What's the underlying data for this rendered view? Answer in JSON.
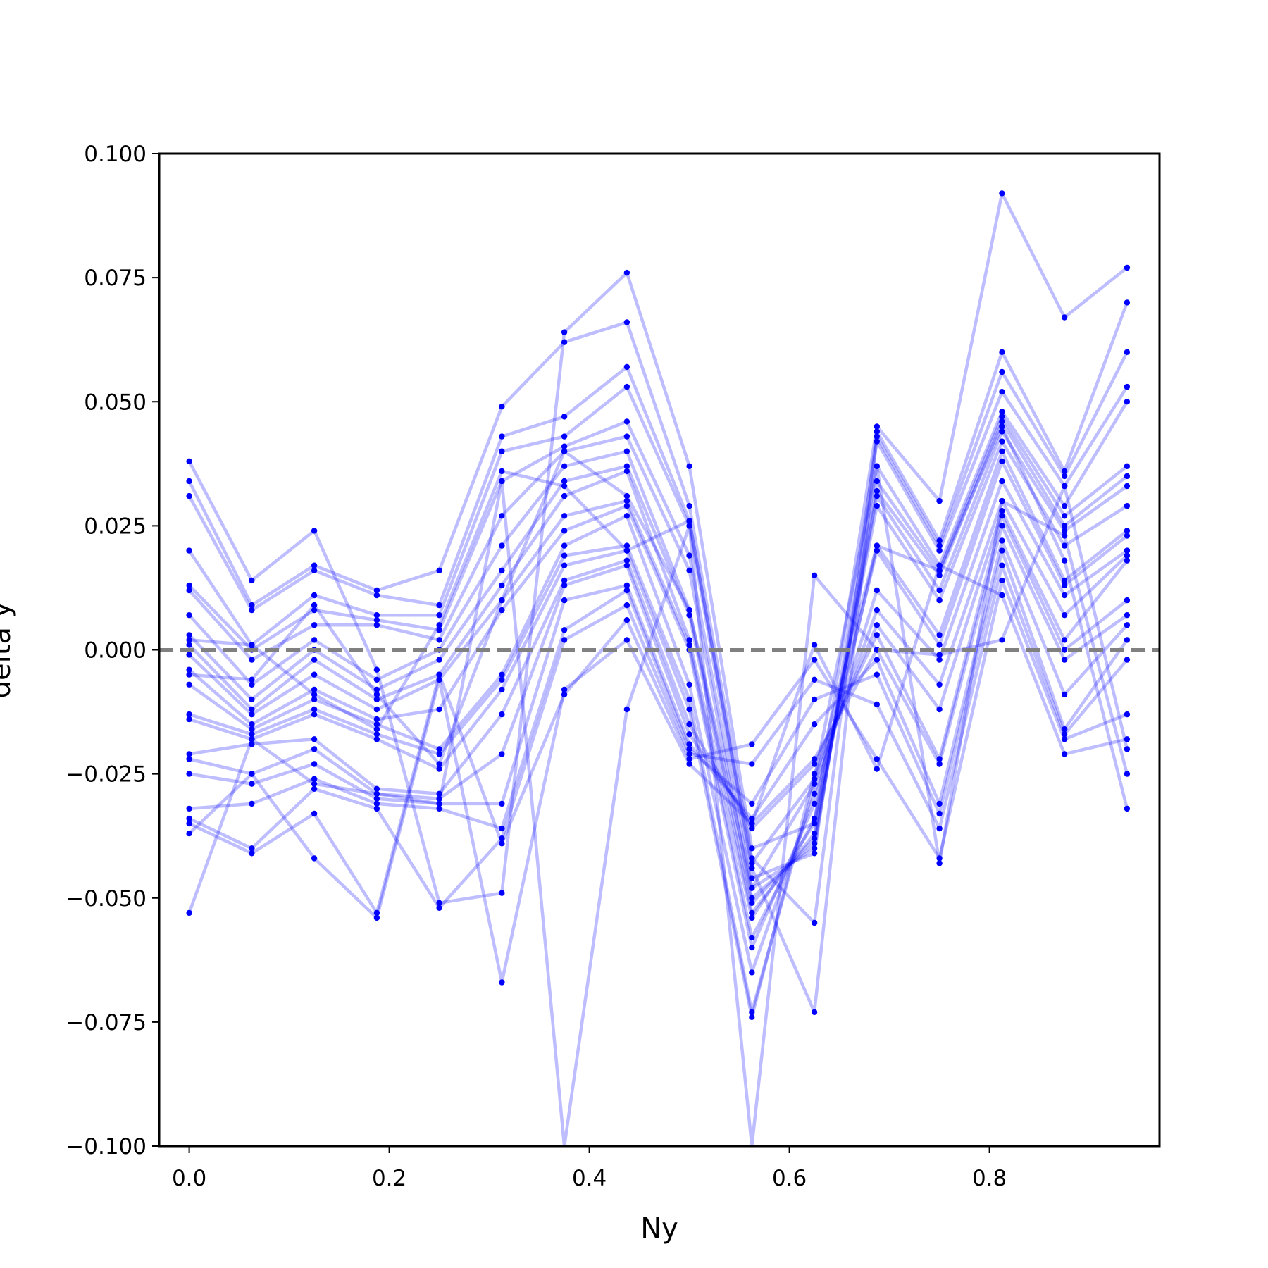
{
  "chart_data": {
    "type": "line",
    "xlabel": "Ny",
    "ylabel": "delta y",
    "xlim": [
      -0.03,
      0.97
    ],
    "ylim": [
      -0.1,
      0.1
    ],
    "xticks": [
      0.0,
      0.2,
      0.4,
      0.6,
      0.8
    ],
    "xtick_labels": [
      "0.0",
      "0.2",
      "0.4",
      "0.6",
      "0.8"
    ],
    "yticks": [
      -0.1,
      -0.075,
      -0.05,
      -0.025,
      0.0,
      0.025,
      0.05,
      0.075,
      0.1
    ],
    "ytick_labels": [
      "−0.100",
      "−0.075",
      "−0.050",
      "−0.025",
      "0.000",
      "0.025",
      "0.050",
      "0.075",
      "0.100"
    ],
    "reference_line": {
      "y": 0.0,
      "style": "dashed",
      "color": "#808080"
    },
    "series_color": "#0000ff",
    "grid": false,
    "x": [
      0.0,
      0.0625,
      0.125,
      0.1875,
      0.25,
      0.3125,
      0.375,
      0.4375,
      0.5,
      0.5625,
      0.625,
      0.6875,
      0.75,
      0.8125,
      0.875,
      0.9375
    ],
    "series": [
      {
        "values": [
          0.038,
          0.014,
          0.024,
          -0.004,
          -0.051,
          -0.049,
          0.064,
          0.076,
          0.037,
          -0.04,
          -0.035,
          0.045,
          0.03,
          0.092,
          0.067,
          0.077
        ]
      },
      {
        "values": [
          0.034,
          0.009,
          0.017,
          0.012,
          0.016,
          0.049,
          0.062,
          0.066,
          0.029,
          -0.042,
          -0.055,
          0.044,
          0.022,
          0.06,
          0.036,
          0.07
        ]
      },
      {
        "values": [
          0.031,
          0.008,
          0.016,
          0.011,
          0.009,
          0.043,
          0.047,
          0.057,
          0.026,
          -0.044,
          -0.073,
          0.043,
          0.021,
          0.056,
          0.035,
          0.06
        ]
      },
      {
        "values": [
          0.02,
          0.001,
          0.011,
          0.007,
          0.007,
          0.04,
          0.043,
          0.053,
          0.025,
          -0.046,
          -0.041,
          0.042,
          0.02,
          0.052,
          0.033,
          0.053
        ]
      },
      {
        "values": [
          0.013,
          0.0,
          0.008,
          0.006,
          0.004,
          0.034,
          0.041,
          0.046,
          0.019,
          -0.048,
          -0.04,
          0.037,
          0.017,
          0.048,
          0.029,
          0.05
        ]
      },
      {
        "values": [
          0.012,
          -0.002,
          0.005,
          0.005,
          0.002,
          0.027,
          0.04,
          0.043,
          0.016,
          -0.05,
          -0.039,
          0.034,
          0.016,
          0.047,
          0.027,
          0.037
        ]
      },
      {
        "values": [
          0.007,
          -0.007,
          0.002,
          -0.006,
          0.0,
          0.021,
          0.037,
          0.04,
          0.008,
          -0.051,
          -0.038,
          0.032,
          0.015,
          0.046,
          0.025,
          0.035
        ]
      },
      {
        "values": [
          0.003,
          -0.01,
          0.0,
          -0.008,
          -0.002,
          0.016,
          0.034,
          0.037,
          0.007,
          -0.053,
          -0.037,
          0.031,
          0.012,
          0.044,
          0.024,
          0.033
        ]
      },
      {
        "values": [
          0.001,
          -0.012,
          -0.002,
          -0.01,
          -0.005,
          0.013,
          0.031,
          0.036,
          0.002,
          -0.054,
          -0.035,
          0.029,
          0.01,
          0.042,
          0.021,
          0.029
        ]
      },
      {
        "values": [
          -0.001,
          -0.013,
          -0.005,
          -0.012,
          -0.006,
          0.01,
          0.027,
          0.03,
          0.001,
          -0.058,
          -0.034,
          0.021,
          0.003,
          0.04,
          0.014,
          0.024
        ]
      },
      {
        "values": [
          -0.004,
          -0.015,
          -0.008,
          -0.014,
          -0.012,
          0.008,
          0.024,
          0.029,
          0.0,
          -0.06,
          -0.031,
          0.02,
          0.001,
          0.038,
          0.013,
          0.023
        ]
      },
      {
        "values": [
          -0.007,
          -0.016,
          -0.01,
          -0.015,
          -0.02,
          -0.005,
          0.021,
          0.027,
          -0.007,
          -0.065,
          -0.029,
          0.012,
          -0.002,
          0.034,
          0.011,
          0.02
        ]
      },
      {
        "values": [
          -0.013,
          -0.017,
          -0.012,
          -0.017,
          -0.021,
          -0.006,
          0.019,
          0.021,
          -0.01,
          -0.073,
          -0.027,
          0.008,
          -0.007,
          0.03,
          0.007,
          0.019
        ]
      },
      {
        "values": [
          -0.014,
          -0.018,
          -0.013,
          -0.018,
          -0.024,
          -0.008,
          0.017,
          0.02,
          -0.012,
          -0.074,
          -0.025,
          0.005,
          -0.012,
          0.028,
          0.002,
          0.018
        ]
      },
      {
        "values": [
          -0.021,
          -0.019,
          -0.018,
          -0.028,
          -0.029,
          -0.013,
          0.014,
          0.018,
          -0.015,
          -0.036,
          -0.023,
          0.003,
          -0.022,
          0.027,
          0.0,
          0.01
        ]
      },
      {
        "values": [
          -0.022,
          -0.025,
          -0.02,
          -0.029,
          -0.03,
          -0.021,
          0.013,
          0.017,
          -0.017,
          -0.035,
          -0.022,
          0.0,
          -0.023,
          0.025,
          -0.002,
          0.007
        ]
      },
      {
        "values": [
          -0.025,
          -0.027,
          -0.023,
          -0.03,
          -0.031,
          -0.031,
          0.01,
          0.013,
          -0.019,
          -0.034,
          -0.015,
          -0.002,
          -0.031,
          0.022,
          -0.009,
          0.005
        ]
      },
      {
        "values": [
          -0.032,
          -0.031,
          -0.026,
          -0.031,
          -0.032,
          -0.036,
          0.004,
          0.012,
          -0.02,
          -0.031,
          -0.01,
          -0.005,
          -0.033,
          0.02,
          -0.016,
          0.002
        ]
      },
      {
        "values": [
          -0.034,
          -0.04,
          -0.028,
          -0.032,
          -0.052,
          -0.038,
          0.002,
          0.009,
          -0.021,
          -0.023,
          -0.006,
          -0.011,
          -0.036,
          0.017,
          -0.017,
          -0.002
        ]
      },
      {
        "values": [
          -0.035,
          -0.041,
          -0.033,
          -0.053,
          -0.005,
          -0.039,
          -0.009,
          0.006,
          -0.022,
          -0.019,
          -0.002,
          -0.022,
          -0.042,
          0.014,
          -0.018,
          -0.013
        ]
      },
      {
        "values": [
          -0.037,
          -0.025,
          -0.042,
          -0.054,
          -0.006,
          -0.067,
          -0.008,
          0.002,
          -0.023,
          -0.035,
          0.001,
          -0.024,
          0.017,
          0.011,
          -0.021,
          -0.018
        ]
      },
      {
        "values": [
          -0.053,
          -0.018,
          -0.027,
          -0.029,
          -0.031,
          0.034,
          -0.1,
          -0.012,
          0.025,
          -0.1,
          0.015,
          0.0,
          -0.001,
          0.002,
          0.033,
          -0.02
        ]
      },
      {
        "values": [
          0.002,
          0.001,
          -0.009,
          -0.016,
          0.005,
          0.036,
          0.033,
          0.02,
          0.026,
          -0.043,
          -0.026,
          0.037,
          -0.043,
          0.03,
          0.023,
          -0.025
        ]
      },
      {
        "values": [
          -0.005,
          -0.006,
          0.009,
          -0.009,
          -0.023,
          0.01,
          0.04,
          0.031,
          0.008,
          -0.048,
          -0.027,
          0.021,
          0.016,
          0.045,
          0.018,
          -0.032
        ]
      }
    ]
  }
}
